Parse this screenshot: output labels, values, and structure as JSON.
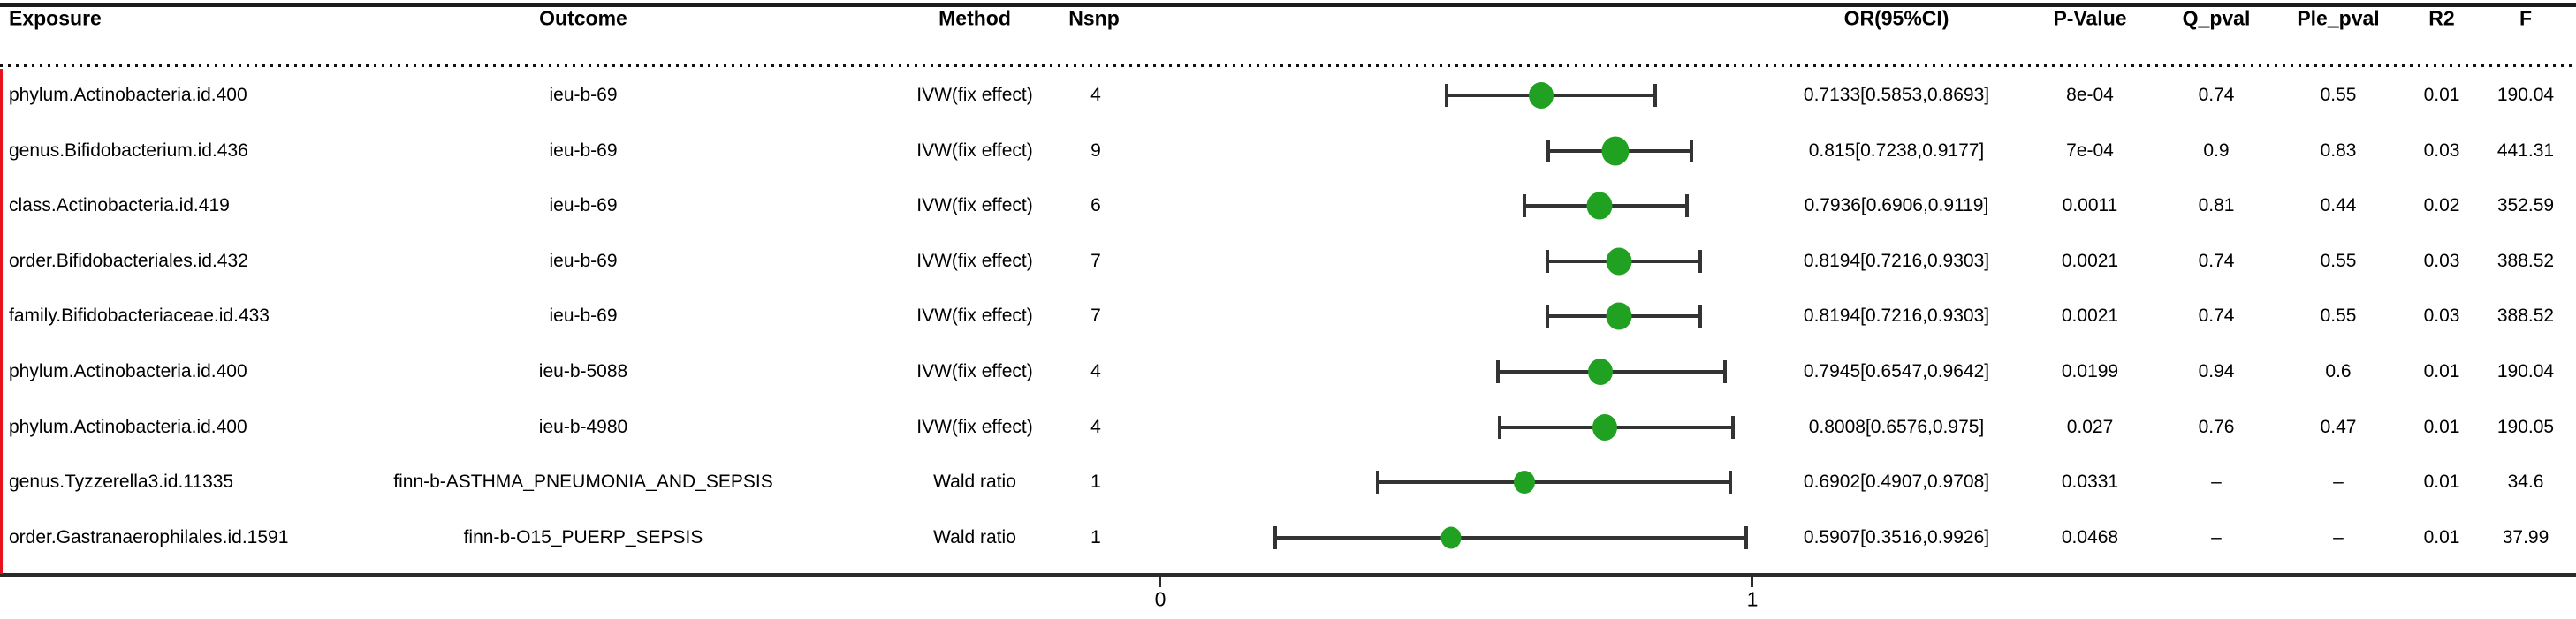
{
  "colors": {
    "dot_green": "#21a121",
    "ref_line_red": "#e8121f",
    "errorbar_dark": "#333333",
    "text": "#000000"
  },
  "chart_data": {
    "type": "forest",
    "xlabel": "",
    "legend": "none",
    "grid": "off",
    "axis": {
      "tick_labels": [
        "0",
        "1"
      ],
      "tick_values": [
        0,
        1
      ],
      "ref_line_value": 1
    },
    "columns": {
      "exposure": "Exposure",
      "outcome": "Outcome",
      "method": "Method",
      "nsnp": "Nsnp",
      "or_ci": "OR(95%CI)",
      "p_value": "P-Value",
      "q_pval": "Q_pval",
      "ple_pval": "Ple_pval",
      "r2": "R2",
      "f": "F"
    },
    "rows": [
      {
        "exposure": "phylum.Actinobacteria.id.400",
        "outcome": "ieu-b-69",
        "method": "IVW(fix effect)",
        "nsnp": "4",
        "or": 0.7133,
        "ci_low": 0.5853,
        "ci_high": 0.8693,
        "or_ci_text": "0.7133[0.5853,0.8693]",
        "p_value": "8e-04",
        "q_pval": "0.74",
        "ple_pval": "0.55",
        "r2": "0.01",
        "f": "190.04"
      },
      {
        "exposure": "genus.Bifidobacterium.id.436",
        "outcome": "ieu-b-69",
        "method": "IVW(fix effect)",
        "nsnp": "9",
        "or": 0.815,
        "ci_low": 0.7238,
        "ci_high": 0.9177,
        "or_ci_text": "0.815[0.7238,0.9177]",
        "p_value": "7e-04",
        "q_pval": "0.9",
        "ple_pval": "0.83",
        "r2": "0.03",
        "f": "441.31"
      },
      {
        "exposure": "class.Actinobacteria.id.419",
        "outcome": "ieu-b-69",
        "method": "IVW(fix effect)",
        "nsnp": "6",
        "or": 0.7936,
        "ci_low": 0.6906,
        "ci_high": 0.9119,
        "or_ci_text": "0.7936[0.6906,0.9119]",
        "p_value": "0.0011",
        "q_pval": "0.81",
        "ple_pval": "0.44",
        "r2": "0.02",
        "f": "352.59"
      },
      {
        "exposure": "order.Bifidobacteriales.id.432",
        "outcome": "ieu-b-69",
        "method": "IVW(fix effect)",
        "nsnp": "7",
        "or": 0.8194,
        "ci_low": 0.7216,
        "ci_high": 0.9303,
        "or_ci_text": "0.8194[0.7216,0.9303]",
        "p_value": "0.0021",
        "q_pval": "0.74",
        "ple_pval": "0.55",
        "r2": "0.03",
        "f": "388.52"
      },
      {
        "exposure": "family.Bifidobacteriaceae.id.433",
        "outcome": "ieu-b-69",
        "method": "IVW(fix effect)",
        "nsnp": "7",
        "or": 0.8194,
        "ci_low": 0.7216,
        "ci_high": 0.9303,
        "or_ci_text": "0.8194[0.7216,0.9303]",
        "p_value": "0.0021",
        "q_pval": "0.74",
        "ple_pval": "0.55",
        "r2": "0.03",
        "f": "388.52"
      },
      {
        "exposure": "phylum.Actinobacteria.id.400",
        "outcome": "ieu-b-5088",
        "method": "IVW(fix effect)",
        "nsnp": "4",
        "or": 0.7945,
        "ci_low": 0.6547,
        "ci_high": 0.9642,
        "or_ci_text": "0.7945[0.6547,0.9642]",
        "p_value": "0.0199",
        "q_pval": "0.94",
        "ple_pval": "0.6",
        "r2": "0.01",
        "f": "190.04"
      },
      {
        "exposure": "phylum.Actinobacteria.id.400",
        "outcome": "ieu-b-4980",
        "method": "IVW(fix effect)",
        "nsnp": "4",
        "or": 0.8008,
        "ci_low": 0.6576,
        "ci_high": 0.975,
        "or_ci_text": "0.8008[0.6576,0.975]",
        "p_value": "0.027",
        "q_pval": "0.76",
        "ple_pval": "0.47",
        "r2": "0.01",
        "f": "190.05"
      },
      {
        "exposure": "genus.Tyzzerella3.id.11335",
        "outcome": "finn-b-ASTHMA_PNEUMONIA_AND_SEPSIS",
        "method": "Wald ratio",
        "nsnp": "1",
        "or": 0.6902,
        "ci_low": 0.4907,
        "ci_high": 0.9708,
        "or_ci_text": "0.6902[0.4907,0.9708]",
        "p_value": "0.0331",
        "q_pval": "–",
        "ple_pval": "–",
        "r2": "0.01",
        "f": "34.6"
      },
      {
        "exposure": "order.Gastranaerophilales.id.1591",
        "outcome": "finn-b-O15_PUERP_SEPSIS",
        "method": "Wald ratio",
        "nsnp": "1",
        "or": 0.5907,
        "ci_low": 0.3516,
        "ci_high": 0.9926,
        "or_ci_text": "0.5907[0.3516,0.9926]",
        "p_value": "0.0468",
        "q_pval": "–",
        "ple_pval": "–",
        "r2": "0.01",
        "f": "37.99"
      }
    ]
  }
}
